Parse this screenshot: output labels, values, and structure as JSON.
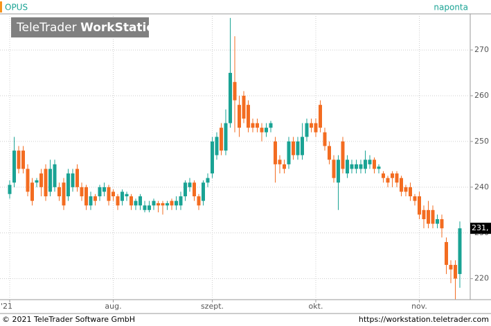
{
  "chart_data": {
    "type": "candlestick",
    "title": "OPUS",
    "subtitle": "naponta",
    "categories": [
      "'21",
      null,
      null,
      null,
      null,
      null,
      null,
      null,
      null,
      null,
      null,
      null,
      null,
      null,
      null,
      null,
      null,
      null,
      null,
      null,
      null,
      null,
      null,
      "aug.",
      null,
      null,
      null,
      null,
      null,
      null,
      null,
      null,
      null,
      null,
      null,
      null,
      null,
      null,
      null,
      null,
      null,
      null,
      null,
      null,
      null,
      "szept.",
      null,
      null,
      null,
      null,
      null,
      null,
      null,
      null,
      null,
      null,
      null,
      null,
      null,
      null,
      null,
      null,
      null,
      null,
      null,
      null,
      null,
      null,
      "okt.",
      null,
      null,
      null,
      null,
      null,
      null,
      null,
      null,
      null,
      null,
      null,
      null,
      null,
      null,
      null,
      null,
      null,
      null,
      null,
      null,
      null,
      null,
      "nov.",
      null,
      null,
      null,
      null,
      null,
      null,
      null,
      null,
      null
    ],
    "open": [
      238.5,
      241,
      248,
      248,
      244,
      241,
      241,
      243,
      244,
      239,
      240,
      240,
      241,
      238,
      240,
      244,
      240,
      240,
      236,
      238,
      238,
      239,
      240,
      239,
      238,
      237,
      238,
      238,
      236,
      236,
      235,
      235,
      236,
      236.5,
      236.5,
      236,
      237,
      236,
      236,
      238,
      240,
      241,
      238,
      237,
      241,
      243,
      247,
      253,
      248,
      254,
      263,
      258,
      260,
      258,
      254,
      254,
      253,
      252,
      253,
      250,
      246,
      245,
      245,
      250,
      247,
      247,
      251,
      254,
      254,
      258,
      252,
      249,
      246,
      241,
      250,
      243,
      244,
      244,
      244,
      244,
      245,
      246,
      244,
      243,
      242,
      243,
      243,
      242,
      240,
      240,
      238,
      238,
      235,
      235,
      235,
      232,
      233,
      228,
      223,
      223,
      221
    ],
    "high": [
      241.5,
      251,
      249,
      249,
      245,
      242,
      242,
      244,
      245,
      246,
      246,
      241,
      242,
      244,
      244,
      245,
      241,
      240.5,
      239,
      238.5,
      240.5,
      241,
      240.5,
      239.5,
      238.5,
      239.5,
      239,
      238.5,
      237.5,
      238.5,
      237,
      237,
      237.5,
      237,
      237,
      237,
      237.5,
      238,
      239,
      241.5,
      242,
      241.5,
      238.5,
      241.5,
      243,
      251,
      252,
      254,
      257,
      277,
      273,
      260,
      261,
      259,
      255,
      255,
      254,
      254,
      254.5,
      251,
      247,
      246,
      251,
      251,
      251,
      254,
      255,
      255,
      255,
      259,
      253,
      250,
      247,
      247,
      251,
      247,
      246,
      246,
      246,
      248,
      247,
      246.5,
      245,
      243.5,
      242.5,
      243.5,
      243.5,
      242.5,
      240.5,
      241,
      238.5,
      239,
      236,
      237,
      236,
      234,
      234,
      229,
      224,
      224,
      232.5
    ],
    "low": [
      237.5,
      240,
      243,
      243,
      238,
      236,
      240,
      238,
      237,
      238,
      239,
      237,
      235,
      237,
      239,
      239,
      237,
      235,
      235,
      236,
      237,
      238,
      236,
      237,
      235,
      236,
      237,
      235,
      235,
      235,
      234.5,
      234.5,
      235,
      234.5,
      234,
      235,
      235,
      235,
      235,
      237,
      239,
      237,
      235,
      236,
      240,
      242,
      246,
      247,
      247,
      253,
      252,
      251,
      254,
      252,
      252,
      252,
      250,
      251,
      252,
      241,
      243,
      243,
      244,
      246,
      246,
      246,
      250,
      252,
      251,
      252,
      248,
      245,
      241,
      235,
      243,
      242,
      243,
      243,
      243,
      243,
      244,
      243,
      243,
      241,
      240,
      240,
      240,
      238,
      238,
      237,
      236,
      233,
      231,
      231,
      231,
      231,
      229,
      221,
      219,
      215.5,
      218
    ],
    "close": [
      240.5,
      248,
      244,
      244,
      239,
      237,
      241.5,
      240,
      238,
      244,
      245,
      238,
      236,
      243,
      243,
      240,
      238,
      236,
      238,
      237,
      240,
      240,
      237,
      238,
      236,
      239,
      238.5,
      236,
      237,
      238,
      236,
      236,
      237,
      236,
      236,
      236.5,
      236,
      237,
      238,
      241,
      241,
      238,
      236,
      241,
      242,
      250,
      251,
      248,
      254,
      265,
      259,
      253,
      255,
      253,
      253,
      253,
      252,
      253,
      254,
      245,
      245,
      244,
      250,
      247,
      250,
      251,
      254,
      253,
      252,
      253,
      249,
      246,
      242,
      246,
      244,
      246,
      245,
      245,
      245,
      246,
      246,
      244,
      244.5,
      242,
      241,
      242,
      241,
      239,
      239,
      238,
      237,
      234,
      233,
      232,
      232,
      233,
      231,
      223,
      222,
      220,
      231
    ],
    "up_color": "#1aa394",
    "down_color": "#f36c21",
    "last_close_label": "231,",
    "ylim": [
      215.4,
      277.9
    ],
    "yticks": [
      220,
      230,
      240,
      250,
      260,
      270
    ],
    "grid": true
  },
  "logo": {
    "brand": "TeleTrader",
    "product": "WorkStation"
  },
  "footer": {
    "copyright": "© 2021 TeleTrader Software GmbH",
    "url": "https://workstation.teletrader.com"
  }
}
